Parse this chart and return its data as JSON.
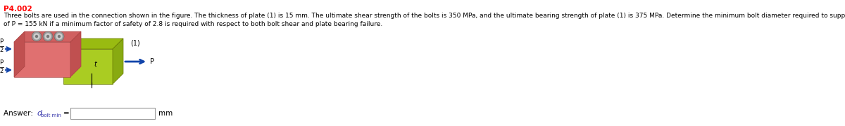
{
  "problem_id": "P4.002",
  "problem_id_color": "#FF0000",
  "description_line1": "Three bolts are used in the connection shown in the figure. The thickness of plate (1) is 15 mm. The ultimate shear strength of the bolts is 350 MPa, and the ultimate bearing strength of plate (1) is 375 MPa. Determine the minimum bolt diameter required to support an applied load",
  "description_line2": "of P = 155 kN if a minimum factor of safety of 2.8 is required with respect to both bolt shear and plate bearing failure.",
  "bg_color": "#ffffff",
  "text_color": "#000000",
  "answer_text_color": "#3333AA",
  "pink_face": "#E07070",
  "pink_side": "#C05050",
  "pink_top": "#D06060",
  "green_face": "#AACC22",
  "green_side": "#88AA11",
  "green_top": "#99BB11",
  "bolt_color": "#999999",
  "bolt_highlight": "#CCCCCC",
  "arrow_color": "#1144AA",
  "label_1_color": "#000000",
  "answer_label": "Answer: ",
  "answer_d": "d",
  "answer_sub": "bolt min",
  "answer_eq": " =",
  "answer_unit": "mm"
}
